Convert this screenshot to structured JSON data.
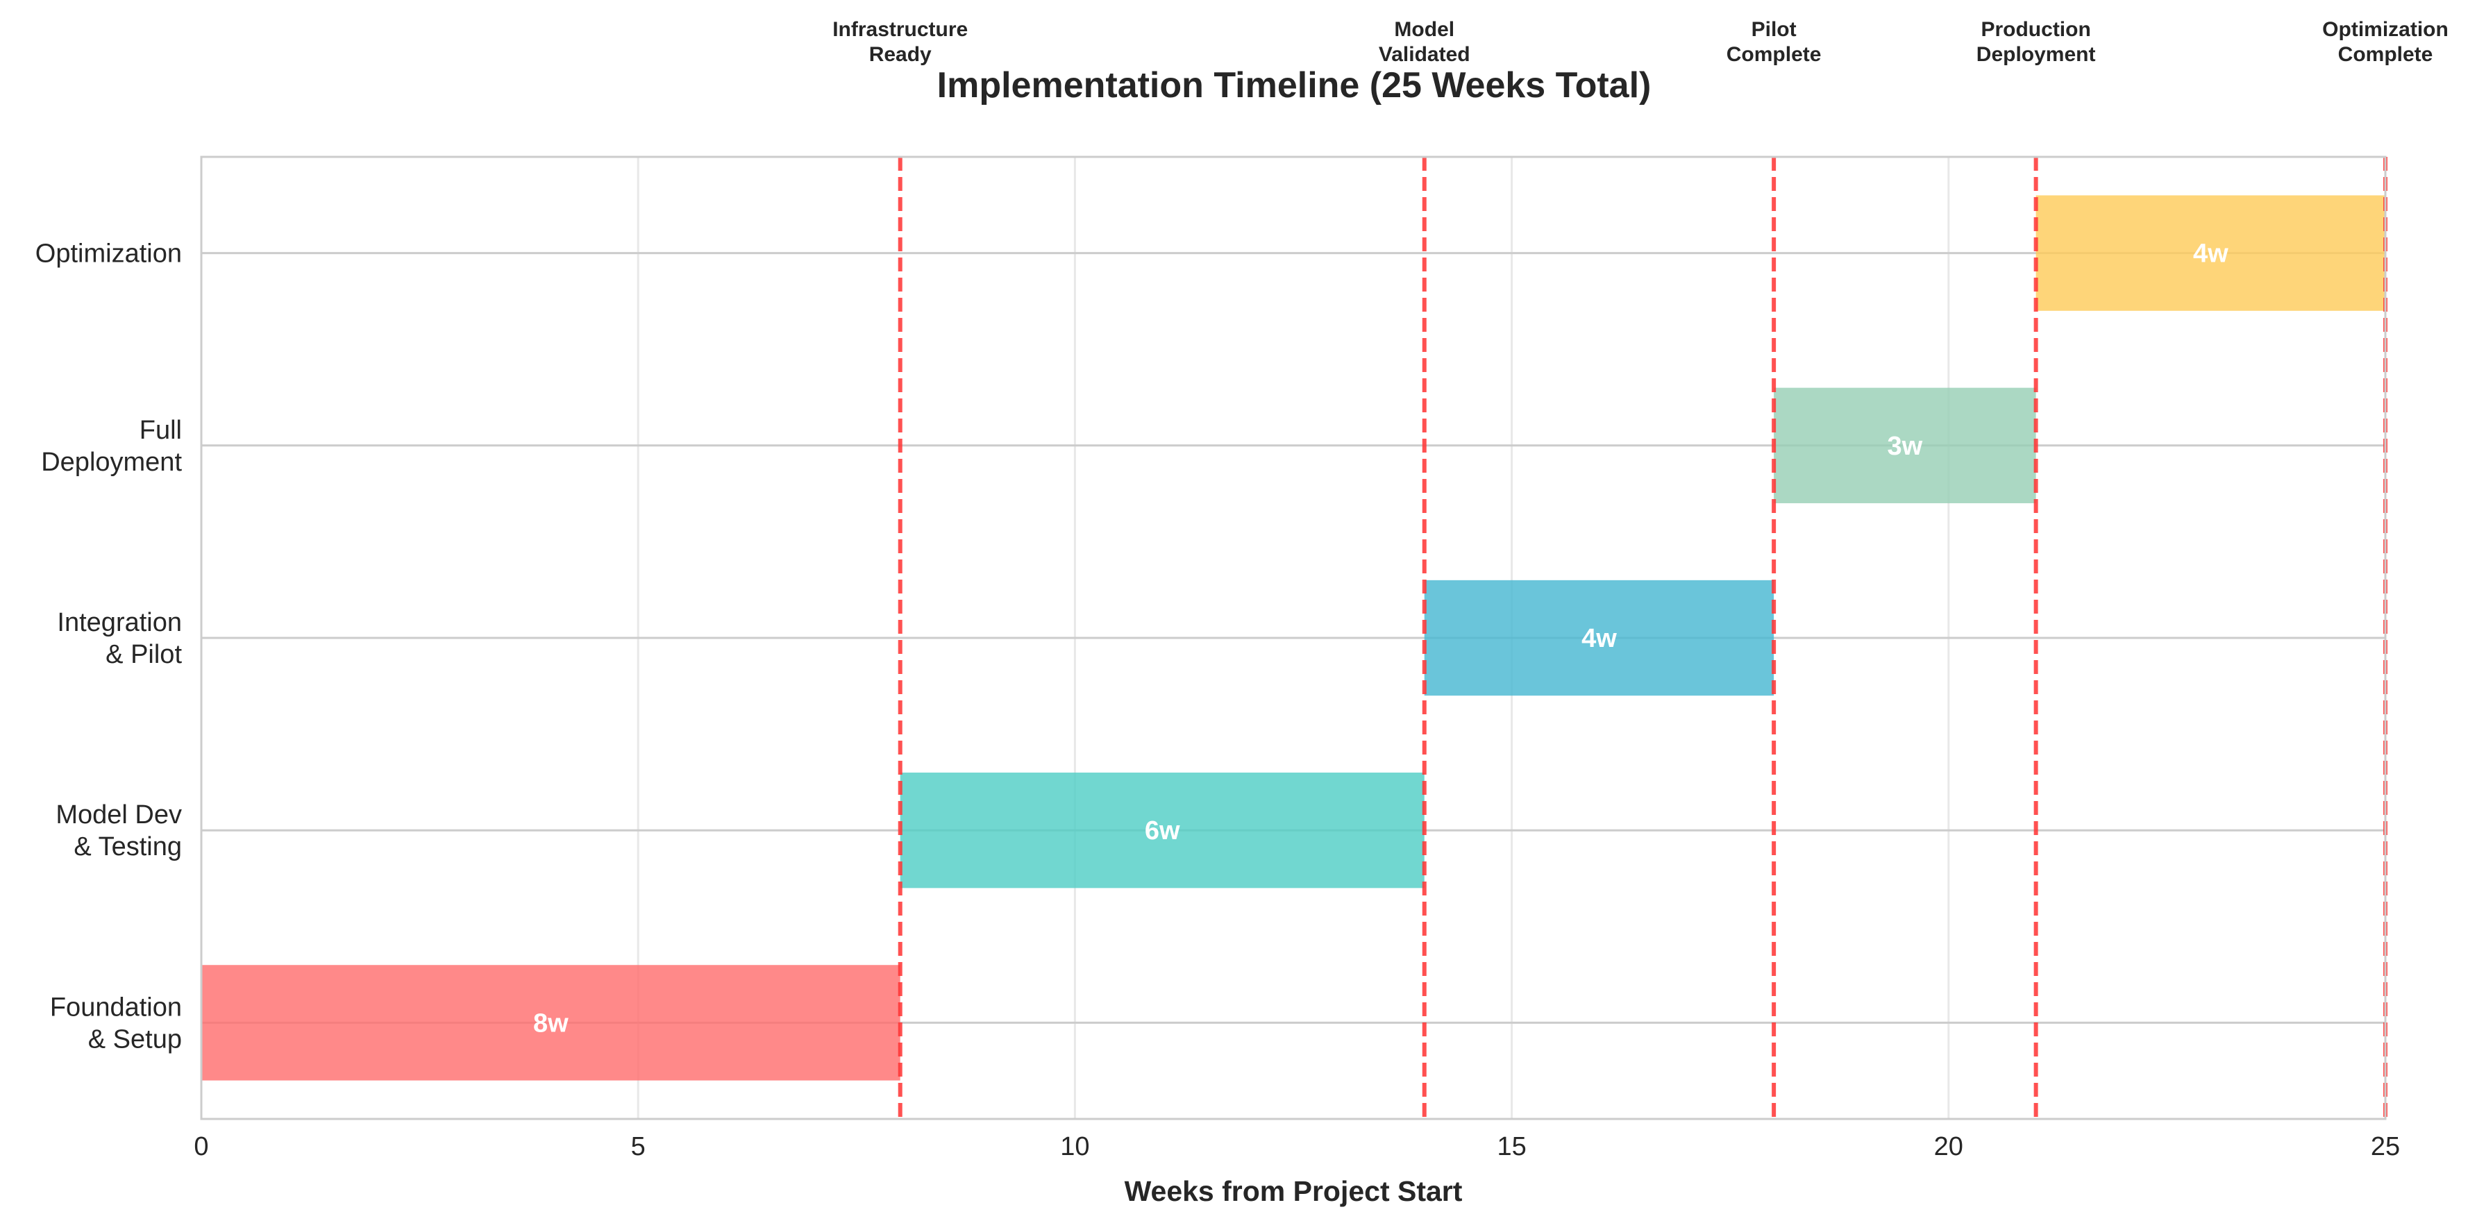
{
  "chart_data": {
    "type": "bar",
    "orientation": "horizontal-gantt",
    "title": "Implementation Timeline (25 Weeks Total)",
    "xlabel": "Weeks from Project Start",
    "ylabel": "",
    "xlim": [
      0,
      25
    ],
    "xticks": [
      "0",
      "5",
      "10",
      "15",
      "20",
      "25"
    ],
    "grid": true,
    "categories": [
      [
        "Foundation",
        "& Setup"
      ],
      [
        "Model Dev",
        "& Testing"
      ],
      [
        "Integration",
        "& Pilot"
      ],
      [
        "Full",
        "Deployment"
      ],
      [
        "Optimization"
      ]
    ],
    "tasks": [
      {
        "start": 0,
        "duration": 8,
        "label": "8w",
        "color": "#FF6B6B"
      },
      {
        "start": 8,
        "duration": 6,
        "label": "6w",
        "color": "#4ECDC4"
      },
      {
        "start": 14,
        "duration": 4,
        "label": "4w",
        "color": "#45B7D1"
      },
      {
        "start": 18,
        "duration": 3,
        "label": "3w",
        "color": "#96CEB4"
      },
      {
        "start": 21,
        "duration": 4,
        "label": "4w",
        "color": "#FECA57"
      }
    ],
    "milestones": [
      {
        "week": 8,
        "label": [
          "Infrastructure",
          "Ready"
        ]
      },
      {
        "week": 14,
        "label": [
          "Model",
          "Validated"
        ]
      },
      {
        "week": 18,
        "label": [
          "Pilot",
          "Complete"
        ]
      },
      {
        "week": 21,
        "label": [
          "Production",
          "Deployment"
        ]
      },
      {
        "week": 25,
        "label": [
          "Optimization",
          "Complete"
        ]
      }
    ],
    "milestone_color": "#FF3333"
  }
}
